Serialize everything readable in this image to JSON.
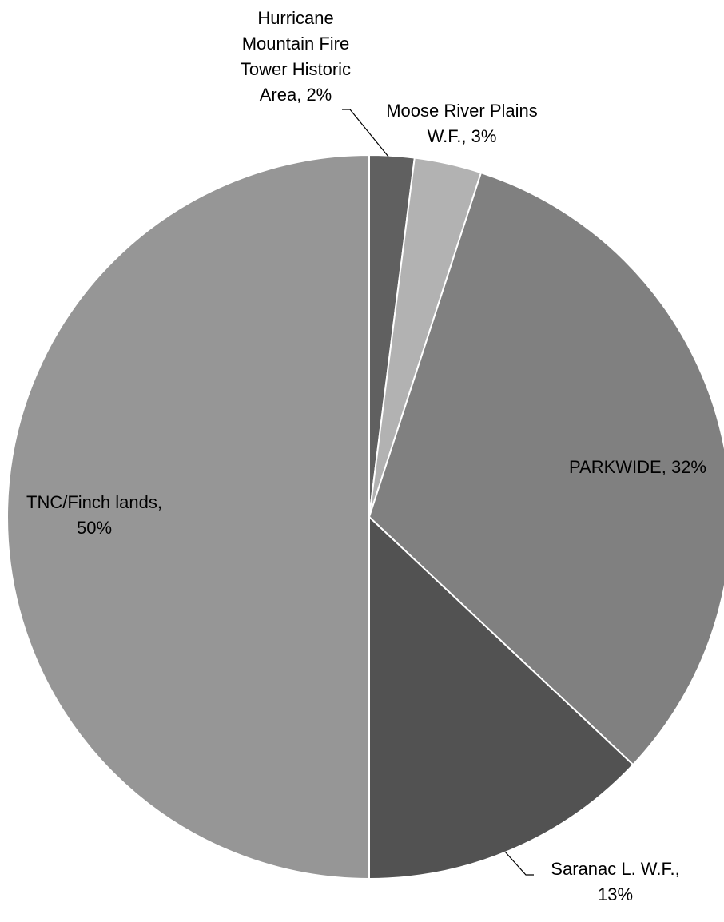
{
  "chart_data": {
    "type": "pie",
    "title": "",
    "slices": [
      {
        "label": "Hurricane Mountain Fire Tower Historic Area, 2%",
        "label_lines": [
          "Hurricane",
          "Mountain Fire",
          "Tower Historic",
          "Area, 2%"
        ],
        "value": 2,
        "color": "#606060"
      },
      {
        "label": "Moose River Plains W.F., 3%",
        "label_lines": [
          "Moose River Plains",
          "W.F., 3%"
        ],
        "value": 3,
        "color": "#b2b2b2"
      },
      {
        "label": "PARKWIDE, 32%",
        "label_lines": [
          "PARKWIDE, 32%"
        ],
        "value": 32,
        "color": "#808080"
      },
      {
        "label": "Saranac L. W.F., 13%",
        "label_lines": [
          "Saranac L. W.F.,",
          "13%"
        ],
        "value": 13,
        "color": "#525252"
      },
      {
        "label": "TNC/Finch lands, 50%",
        "label_lines": [
          "TNC/Finch lands,",
          "50%"
        ],
        "value": 50,
        "color": "#969696"
      }
    ],
    "legend": "none",
    "data_labels": "outside-with-leader-lines"
  }
}
